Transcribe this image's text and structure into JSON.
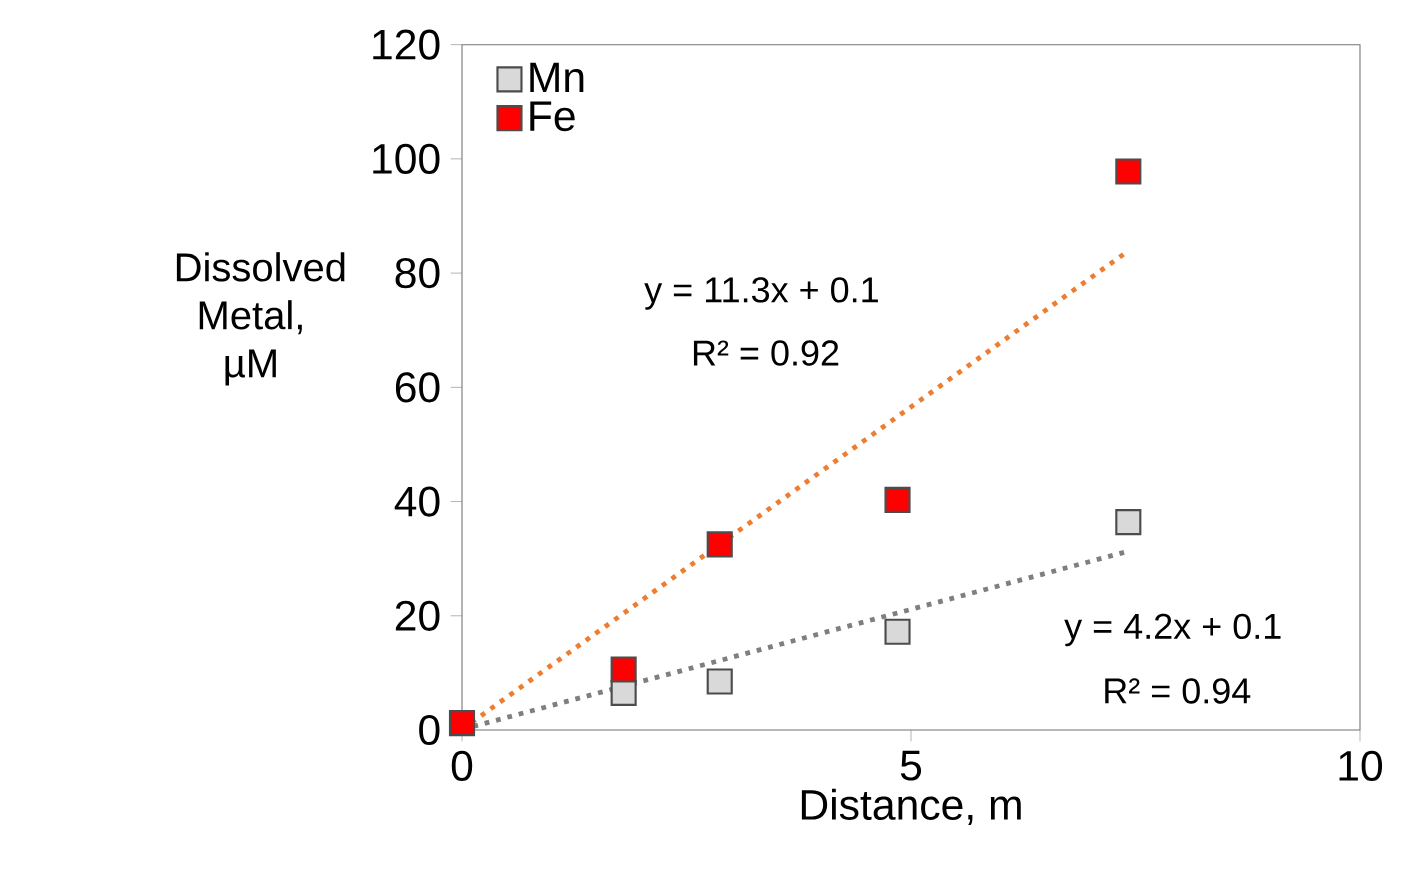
{
  "chart_data": {
    "type": "scatter",
    "xlabel": "Distance, m",
    "ylabel": "Dissolved Metal, µM",
    "xlim": [
      0,
      10
    ],
    "xticks": [
      0,
      5,
      10
    ],
    "ylim": [
      0,
      120
    ],
    "yticks": [
      0,
      20,
      40,
      60,
      80,
      100,
      120
    ],
    "legend": "top left",
    "grid": false,
    "series": [
      {
        "name": "Mn",
        "color": "#d9d9d9",
        "marker": "square",
        "x": [
          1.8,
          2.87,
          4.85,
          7.42
        ],
        "values": [
          6.5,
          8.5,
          17.2,
          36.4
        ]
      },
      {
        "name": "Fe",
        "color": "#ff0000",
        "marker": "square",
        "x": [
          0,
          1.8,
          2.87,
          4.85,
          7.42
        ],
        "values": [
          1.2,
          10.6,
          32.5,
          40.3,
          97.8
        ]
      },
      {
        "type": "line",
        "line_style": "dotted",
        "marker": "none",
        "color": "#ed7d31",
        "x": [
          0,
          7.42
        ],
        "values": [
          0.1,
          83.9
        ]
      },
      {
        "type": "line",
        "line_style": "dotted",
        "marker": "none",
        "color": "#7f7f7f",
        "x": [
          0,
          7.42
        ],
        "values": [
          0.1,
          31.3
        ]
      }
    ],
    "annotations": [
      "y = 11.3x + 0.1",
      "R² = 0.92",
      "y = 4.2x + 0.1",
      "R² = 0.94"
    ]
  }
}
